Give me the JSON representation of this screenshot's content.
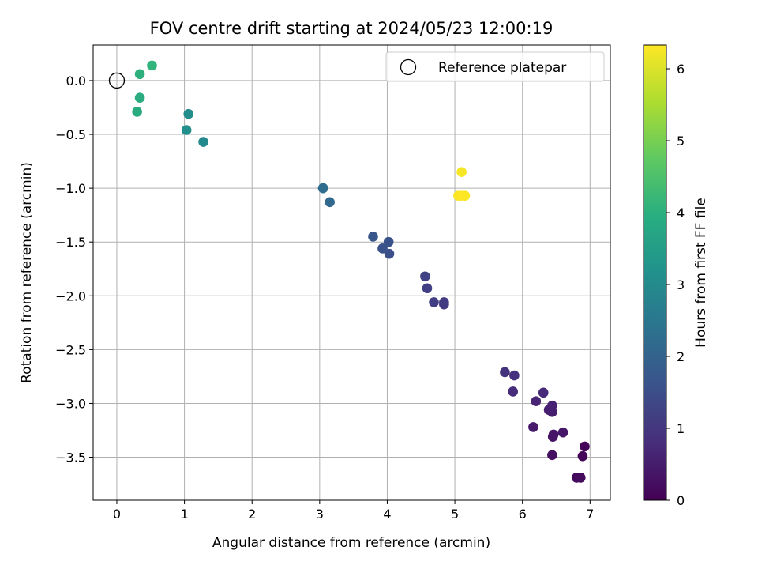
{
  "chart_data": {
    "type": "scatter",
    "title": "FOV centre drift starting at 2024/05/23 12:00:19",
    "xlabel": "Angular distance from reference (arcmin)",
    "ylabel": "Rotation from reference (arcmin)",
    "xlim": [
      -0.35,
      7.3
    ],
    "ylim": [
      -3.9,
      0.33
    ],
    "xticks": [
      0,
      1,
      2,
      3,
      4,
      5,
      6,
      7
    ],
    "xtick_labels": [
      "0",
      "1",
      "2",
      "3",
      "4",
      "5",
      "6",
      "7"
    ],
    "yticks": [
      0.0,
      -0.5,
      -1.0,
      -1.5,
      -2.0,
      -2.5,
      -3.0,
      -3.5
    ],
    "ytick_labels": [
      "0.0",
      "−0.5",
      "−1.0",
      "−1.5",
      "−2.0",
      "−2.5",
      "−3.0",
      "−3.5"
    ],
    "grid": true,
    "legend": {
      "placement": "upper-right",
      "entries": [
        "Reference platepar"
      ]
    },
    "reference_point": {
      "x": 0,
      "y": 0,
      "label": "Reference platepar"
    },
    "colorbar": {
      "label": "Hours from first FF file",
      "colormap": "viridis",
      "range": [
        0,
        6.33
      ],
      "ticks": [
        0,
        1,
        2,
        3,
        4,
        5,
        6
      ],
      "tick_labels": [
        "0",
        "1",
        "2",
        "3",
        "4",
        "5",
        "6"
      ]
    },
    "points": [
      {
        "x": 6.92,
        "y": -3.4,
        "hours": 0.05
      },
      {
        "x": 6.89,
        "y": -3.49,
        "hours": 0.1
      },
      {
        "x": 6.8,
        "y": -3.69,
        "hours": 0.15
      },
      {
        "x": 6.86,
        "y": -3.69,
        "hours": 0.2
      },
      {
        "x": 6.44,
        "y": -3.48,
        "hours": 0.25
      },
      {
        "x": 6.45,
        "y": -3.31,
        "hours": 0.3
      },
      {
        "x": 6.46,
        "y": -3.29,
        "hours": 0.35
      },
      {
        "x": 6.6,
        "y": -3.27,
        "hours": 0.4
      },
      {
        "x": 6.16,
        "y": -3.22,
        "hours": 0.45
      },
      {
        "x": 6.44,
        "y": -3.08,
        "hours": 0.5
      },
      {
        "x": 6.39,
        "y": -3.06,
        "hours": 0.55
      },
      {
        "x": 6.44,
        "y": -3.02,
        "hours": 0.6
      },
      {
        "x": 6.2,
        "y": -2.98,
        "hours": 0.65
      },
      {
        "x": 6.31,
        "y": -2.9,
        "hours": 0.7
      },
      {
        "x": 5.86,
        "y": -2.89,
        "hours": 0.78
      },
      {
        "x": 5.88,
        "y": -2.74,
        "hours": 0.85
      },
      {
        "x": 5.74,
        "y": -2.71,
        "hours": 0.92
      },
      {
        "x": 4.84,
        "y": -2.08,
        "hours": 1.05
      },
      {
        "x": 4.84,
        "y": -2.06,
        "hours": 1.1
      },
      {
        "x": 4.69,
        "y": -2.06,
        "hours": 1.15
      },
      {
        "x": 4.59,
        "y": -1.93,
        "hours": 1.2
      },
      {
        "x": 4.56,
        "y": -1.82,
        "hours": 1.25
      },
      {
        "x": 4.03,
        "y": -1.61,
        "hours": 1.55
      },
      {
        "x": 4.02,
        "y": -1.5,
        "hours": 1.6
      },
      {
        "x": 3.93,
        "y": -1.56,
        "hours": 1.65
      },
      {
        "x": 3.79,
        "y": -1.45,
        "hours": 1.7
      },
      {
        "x": 3.15,
        "y": -1.13,
        "hours": 2.1
      },
      {
        "x": 3.05,
        "y": -1.0,
        "hours": 2.2
      },
      {
        "x": 3.05,
        "y": -1.0,
        "hours": 2.25
      },
      {
        "x": 1.28,
        "y": -0.57,
        "hours": 3.0
      },
      {
        "x": 1.06,
        "y": -0.31,
        "hours": 3.1
      },
      {
        "x": 1.03,
        "y": -0.46,
        "hours": 3.15
      },
      {
        "x": 0.3,
        "y": -0.29,
        "hours": 3.85
      },
      {
        "x": 0.34,
        "y": -0.16,
        "hours": 3.9
      },
      {
        "x": 0.34,
        "y": 0.06,
        "hours": 4.0
      },
      {
        "x": 0.52,
        "y": 0.14,
        "hours": 4.1
      },
      {
        "x": 5.1,
        "y": -0.85,
        "hours": 6.25
      },
      {
        "x": 5.05,
        "y": -1.07,
        "hours": 6.28
      },
      {
        "x": 5.15,
        "y": -1.07,
        "hours": 6.3
      },
      {
        "x": 5.1,
        "y": -1.07,
        "hours": 6.33
      }
    ]
  }
}
